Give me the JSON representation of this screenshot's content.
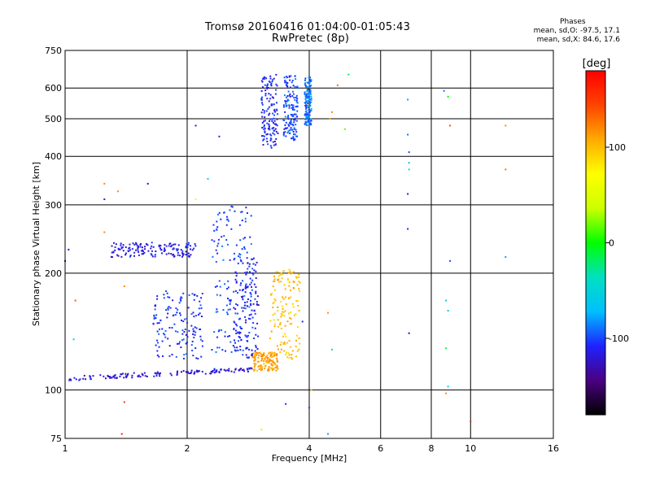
{
  "title": "Tromsø 20160416 01:04:00-01:05:43",
  "subtitle": "RwPretec (8p)",
  "phases_box": {
    "heading": "Phases",
    "line_o": "mean, sd,O: -97.5, 17.1",
    "line_x": "mean, sd,X:  84.6, 17.6"
  },
  "colorbar": {
    "label": "[deg]",
    "tick_values": [
      100,
      0,
      -100
    ],
    "tick_labels": [
      "100",
      "0",
      "-100"
    ],
    "range": [
      -180,
      180
    ],
    "colors": [
      "#000000",
      "#4b0082",
      "#1e22ff",
      "#00bfff",
      "#00e0c0",
      "#00ff00",
      "#ccff00",
      "#ffff00",
      "#ffaa00",
      "#ff4400",
      "#ff0000"
    ]
  },
  "chart_data": {
    "type": "scatter",
    "title": "Tromsø 20160416 01:04:00-01:05:43",
    "subtitle": "RwPretec (8p)",
    "xlabel": "Frequency [MHz]",
    "ylabel": "Stationary phase Virtual Height [km]",
    "xscale": "log",
    "yscale": "log",
    "xlim": [
      1,
      16
    ],
    "ylim": [
      75,
      750
    ],
    "x_ticks": [
      1,
      2,
      4,
      6,
      8,
      10,
      16
    ],
    "x_tick_labels": [
      "1",
      "2",
      "4",
      "6",
      "8",
      "10",
      "16"
    ],
    "y_ticks": [
      75,
      100,
      200,
      300,
      400,
      500,
      600,
      750
    ],
    "y_tick_labels": [
      "75",
      "100",
      "200",
      "300",
      "400",
      "500",
      "600",
      "750"
    ],
    "grid": true,
    "color_quantity": "phase [deg]",
    "traces": [
      {
        "x_from": 1.02,
        "x_to": 2.9,
        "y_from": 107,
        "y_to": 113,
        "phase": -120
      },
      {
        "x_from": 1.3,
        "x_to": 2.1,
        "y_from": 220,
        "y_to": 240,
        "phase": -115
      },
      {
        "x_from": 1.65,
        "x_to": 2.2,
        "y_from": 120,
        "y_to": 180,
        "phase": -105
      },
      {
        "x_from": 2.3,
        "x_to": 2.9,
        "y_from": 125,
        "y_to": 300,
        "phase": -100
      },
      {
        "x_from": 2.6,
        "x_to": 3.0,
        "y_from": 120,
        "y_to": 220,
        "phase": -110
      },
      {
        "x_from": 2.9,
        "x_to": 3.35,
        "y_from": 112,
        "y_to": 125,
        "phase": 110
      },
      {
        "x_from": 3.2,
        "x_to": 3.8,
        "y_from": 120,
        "y_to": 205,
        "phase": 100
      },
      {
        "x_from": 3.05,
        "x_to": 3.35,
        "y_from": 420,
        "y_to": 650,
        "phase": -110
      },
      {
        "x_from": 3.45,
        "x_to": 3.75,
        "y_from": 440,
        "y_to": 645,
        "phase": -100
      },
      {
        "x_from": 3.9,
        "x_to": 4.05,
        "y_from": 480,
        "y_to": 640,
        "phase": -90
      }
    ],
    "points": [
      {
        "x": 4.5,
        "y": 500,
        "phase": 110
      },
      {
        "x": 4.55,
        "y": 520,
        "phase": 120
      },
      {
        "x": 4.7,
        "y": 610,
        "phase": 130
      },
      {
        "x": 4.9,
        "y": 470,
        "phase": 20
      },
      {
        "x": 5.0,
        "y": 650,
        "phase": -20
      },
      {
        "x": 7.0,
        "y": 560,
        "phase": -80
      },
      {
        "x": 7.0,
        "y": 455,
        "phase": -90
      },
      {
        "x": 7.05,
        "y": 410,
        "phase": -100
      },
      {
        "x": 7.05,
        "y": 385,
        "phase": -70
      },
      {
        "x": 7.05,
        "y": 370,
        "phase": -40
      },
      {
        "x": 7.0,
        "y": 320,
        "phase": -120
      },
      {
        "x": 7.0,
        "y": 260,
        "phase": -110
      },
      {
        "x": 7.05,
        "y": 140,
        "phase": -130
      },
      {
        "x": 8.6,
        "y": 590,
        "phase": -90
      },
      {
        "x": 8.8,
        "y": 570,
        "phase": 0
      },
      {
        "x": 8.9,
        "y": 480,
        "phase": 140
      },
      {
        "x": 8.9,
        "y": 215,
        "phase": -100
      },
      {
        "x": 8.7,
        "y": 170,
        "phase": -70
      },
      {
        "x": 8.8,
        "y": 160,
        "phase": -60
      },
      {
        "x": 8.7,
        "y": 128,
        "phase": -10
      },
      {
        "x": 8.8,
        "y": 102,
        "phase": -60
      },
      {
        "x": 8.7,
        "y": 98,
        "phase": 120
      },
      {
        "x": 10.0,
        "y": 83,
        "phase": 160
      },
      {
        "x": 12.2,
        "y": 480,
        "phase": 120
      },
      {
        "x": 12.2,
        "y": 370,
        "phase": 130
      },
      {
        "x": 12.2,
        "y": 220,
        "phase": -80
      },
      {
        "x": 1.0,
        "y": 215,
        "phase": -130
      },
      {
        "x": 1.02,
        "y": 230,
        "phase": -120
      },
      {
        "x": 1.06,
        "y": 170,
        "phase": 140
      },
      {
        "x": 1.05,
        "y": 135,
        "phase": -60
      },
      {
        "x": 1.25,
        "y": 340,
        "phase": 120
      },
      {
        "x": 1.25,
        "y": 310,
        "phase": -110
      },
      {
        "x": 1.35,
        "y": 325,
        "phase": 120
      },
      {
        "x": 1.6,
        "y": 340,
        "phase": -130
      },
      {
        "x": 1.25,
        "y": 255,
        "phase": 120
      },
      {
        "x": 1.4,
        "y": 185,
        "phase": 120
      },
      {
        "x": 1.4,
        "y": 93,
        "phase": 150
      },
      {
        "x": 1.38,
        "y": 77,
        "phase": 160
      },
      {
        "x": 2.1,
        "y": 310,
        "phase": 60
      },
      {
        "x": 2.25,
        "y": 350,
        "phase": -50
      },
      {
        "x": 2.1,
        "y": 480,
        "phase": -120
      },
      {
        "x": 2.4,
        "y": 450,
        "phase": -120
      },
      {
        "x": 3.05,
        "y": 79,
        "phase": 40
      },
      {
        "x": 3.5,
        "y": 92,
        "phase": -110
      },
      {
        "x": 4.0,
        "y": 90,
        "phase": -100
      },
      {
        "x": 4.45,
        "y": 77,
        "phase": -80
      },
      {
        "x": 4.45,
        "y": 158,
        "phase": 120
      },
      {
        "x": 4.55,
        "y": 127,
        "phase": -40
      },
      {
        "x": 3.85,
        "y": 150,
        "phase": -110
      },
      {
        "x": 4.05,
        "y": 100,
        "phase": 100
      }
    ]
  }
}
